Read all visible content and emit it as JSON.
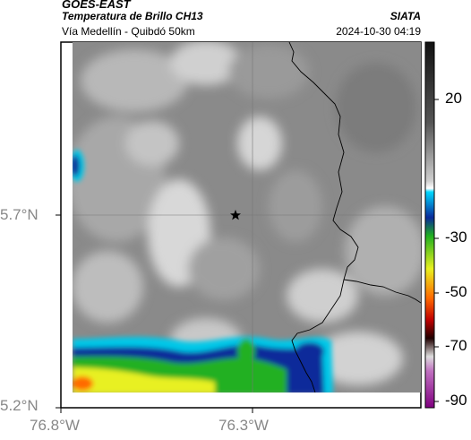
{
  "header": {
    "satellite": "GOES-EAST",
    "product": "Temperatura de Brillo CH13",
    "region": "Vía Medellín - Quibdó 50km",
    "organization": "SIATA",
    "timestamp": "2024-10-30 04:19"
  },
  "axes": {
    "lat_ticks": [
      "5.7°N",
      "5.2°N"
    ],
    "lon_ticks": [
      "76.8°W",
      "76.3°W"
    ]
  },
  "colorbar": {
    "ticks": [
      "20",
      "-30",
      "-50",
      "-70",
      "-90"
    ],
    "colors": {
      "warm_gray": "#808080",
      "cold_blue": "#1a3fbf",
      "cold_green": "#20c020",
      "cold_yellow": "#e8e820",
      "cold_red": "#d01010",
      "very_cold_magenta": "#c060c0"
    }
  },
  "map": {
    "marker": "star",
    "marker_label": ""
  }
}
